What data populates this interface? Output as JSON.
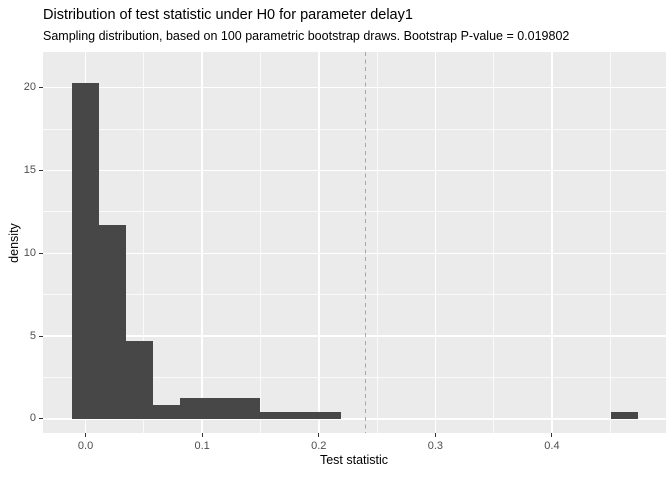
{
  "chart_data": {
    "type": "bar",
    "subtype": "histogram",
    "title": "Distribution of test statistic under H0 for parameter delay1",
    "subtitle": "Sampling distribution, based on 100 parametric bootstrap draws. Bootstrap P-value = 0.019802",
    "xlabel": "Test statistic",
    "ylabel": "density",
    "xlim": [
      -0.0365,
      0.4978
    ],
    "ylim": [
      -0.85,
      22.15
    ],
    "grid": "major-and-minor",
    "legend": "none",
    "panel_bg": "#EBEBEB",
    "bar_color": "#474747",
    "gridline_color": "#FFFFFF",
    "x_ticks": [
      {
        "v": 0.0,
        "label": "0.0"
      },
      {
        "v": 0.1,
        "label": "0.1"
      },
      {
        "v": 0.2,
        "label": "0.2"
      },
      {
        "v": 0.3,
        "label": "0.3"
      },
      {
        "v": 0.4,
        "label": "0.4"
      }
    ],
    "y_ticks": [
      {
        "v": 0,
        "label": "0"
      },
      {
        "v": 5,
        "label": "5"
      },
      {
        "v": 10,
        "label": "10"
      },
      {
        "v": 15,
        "label": "15"
      },
      {
        "v": 20,
        "label": "20"
      }
    ],
    "x_minor_ticks": [
      0.05,
      0.15,
      0.25,
      0.35,
      0.45
    ],
    "y_minor_ticks": [
      2.5,
      7.5,
      12.5,
      17.5
    ],
    "bins": [
      {
        "x0": -0.0117,
        "x1": 0.0114,
        "density": 20.3
      },
      {
        "x0": 0.0114,
        "x1": 0.0345,
        "density": 11.7
      },
      {
        "x0": 0.0345,
        "x1": 0.0576,
        "density": 4.7
      },
      {
        "x0": 0.0576,
        "x1": 0.0807,
        "density": 0.85
      },
      {
        "x0": 0.0807,
        "x1": 0.1038,
        "density": 1.28
      },
      {
        "x0": 0.1038,
        "x1": 0.1269,
        "density": 1.28
      },
      {
        "x0": 0.1269,
        "x1": 0.15,
        "density": 1.28
      },
      {
        "x0": 0.15,
        "x1": 0.1731,
        "density": 0.43
      },
      {
        "x0": 0.1731,
        "x1": 0.1962,
        "density": 0.43
      },
      {
        "x0": 0.1962,
        "x1": 0.2193,
        "density": 0.43
      },
      {
        "x0": 0.4503,
        "x1": 0.4734,
        "density": 0.43
      }
    ],
    "vline": {
      "x": 0.2403,
      "style": "dashed",
      "color": "#A8A8A8",
      "meaning": "observed test statistic"
    }
  }
}
